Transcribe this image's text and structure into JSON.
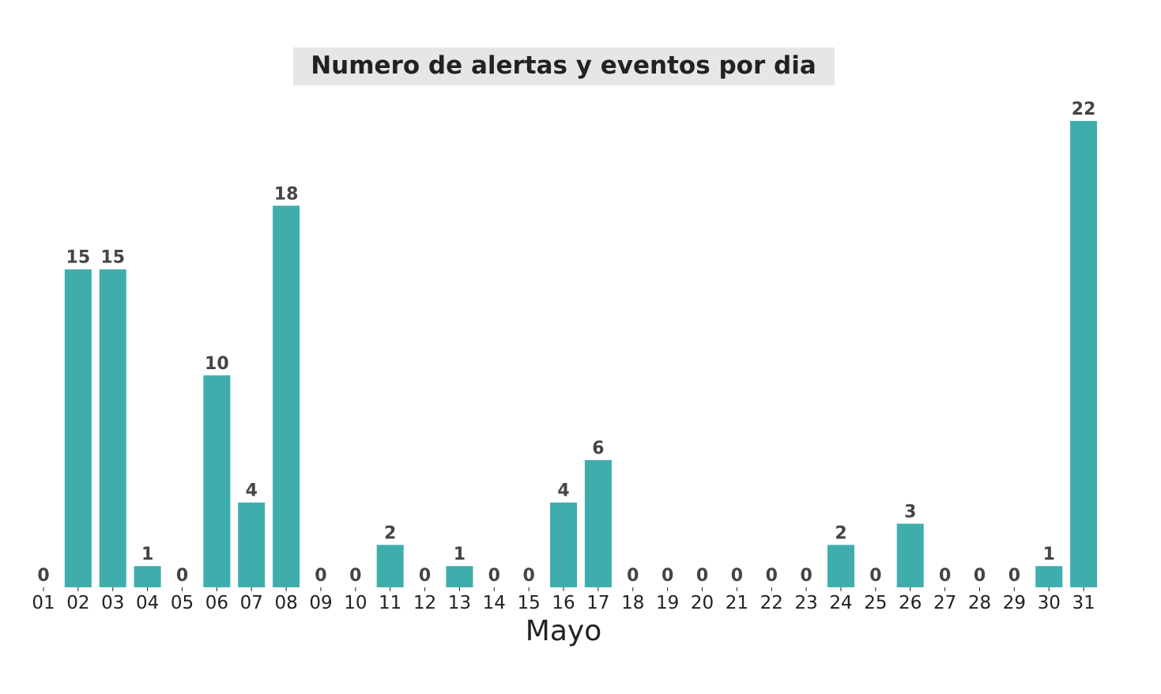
{
  "chart_data": {
    "type": "bar",
    "title": "Numero de alertas y eventos por dia",
    "xlabel": "Mayo",
    "ylabel": "",
    "categories": [
      "01",
      "02",
      "03",
      "04",
      "05",
      "06",
      "07",
      "08",
      "09",
      "10",
      "11",
      "12",
      "13",
      "14",
      "15",
      "16",
      "17",
      "18",
      "19",
      "20",
      "21",
      "22",
      "23",
      "24",
      "25",
      "26",
      "27",
      "28",
      "29",
      "30",
      "31"
    ],
    "values": [
      0,
      15,
      15,
      1,
      0,
      10,
      4,
      18,
      0,
      0,
      2,
      0,
      1,
      0,
      0,
      4,
      6,
      0,
      0,
      0,
      0,
      0,
      0,
      2,
      0,
      3,
      0,
      0,
      0,
      1,
      22
    ],
    "ylim": [
      0,
      22
    ],
    "bar_color": "#40ADAD",
    "title_background": "#E6E6E6",
    "grid": false,
    "legend": "none",
    "data_labels": true
  }
}
